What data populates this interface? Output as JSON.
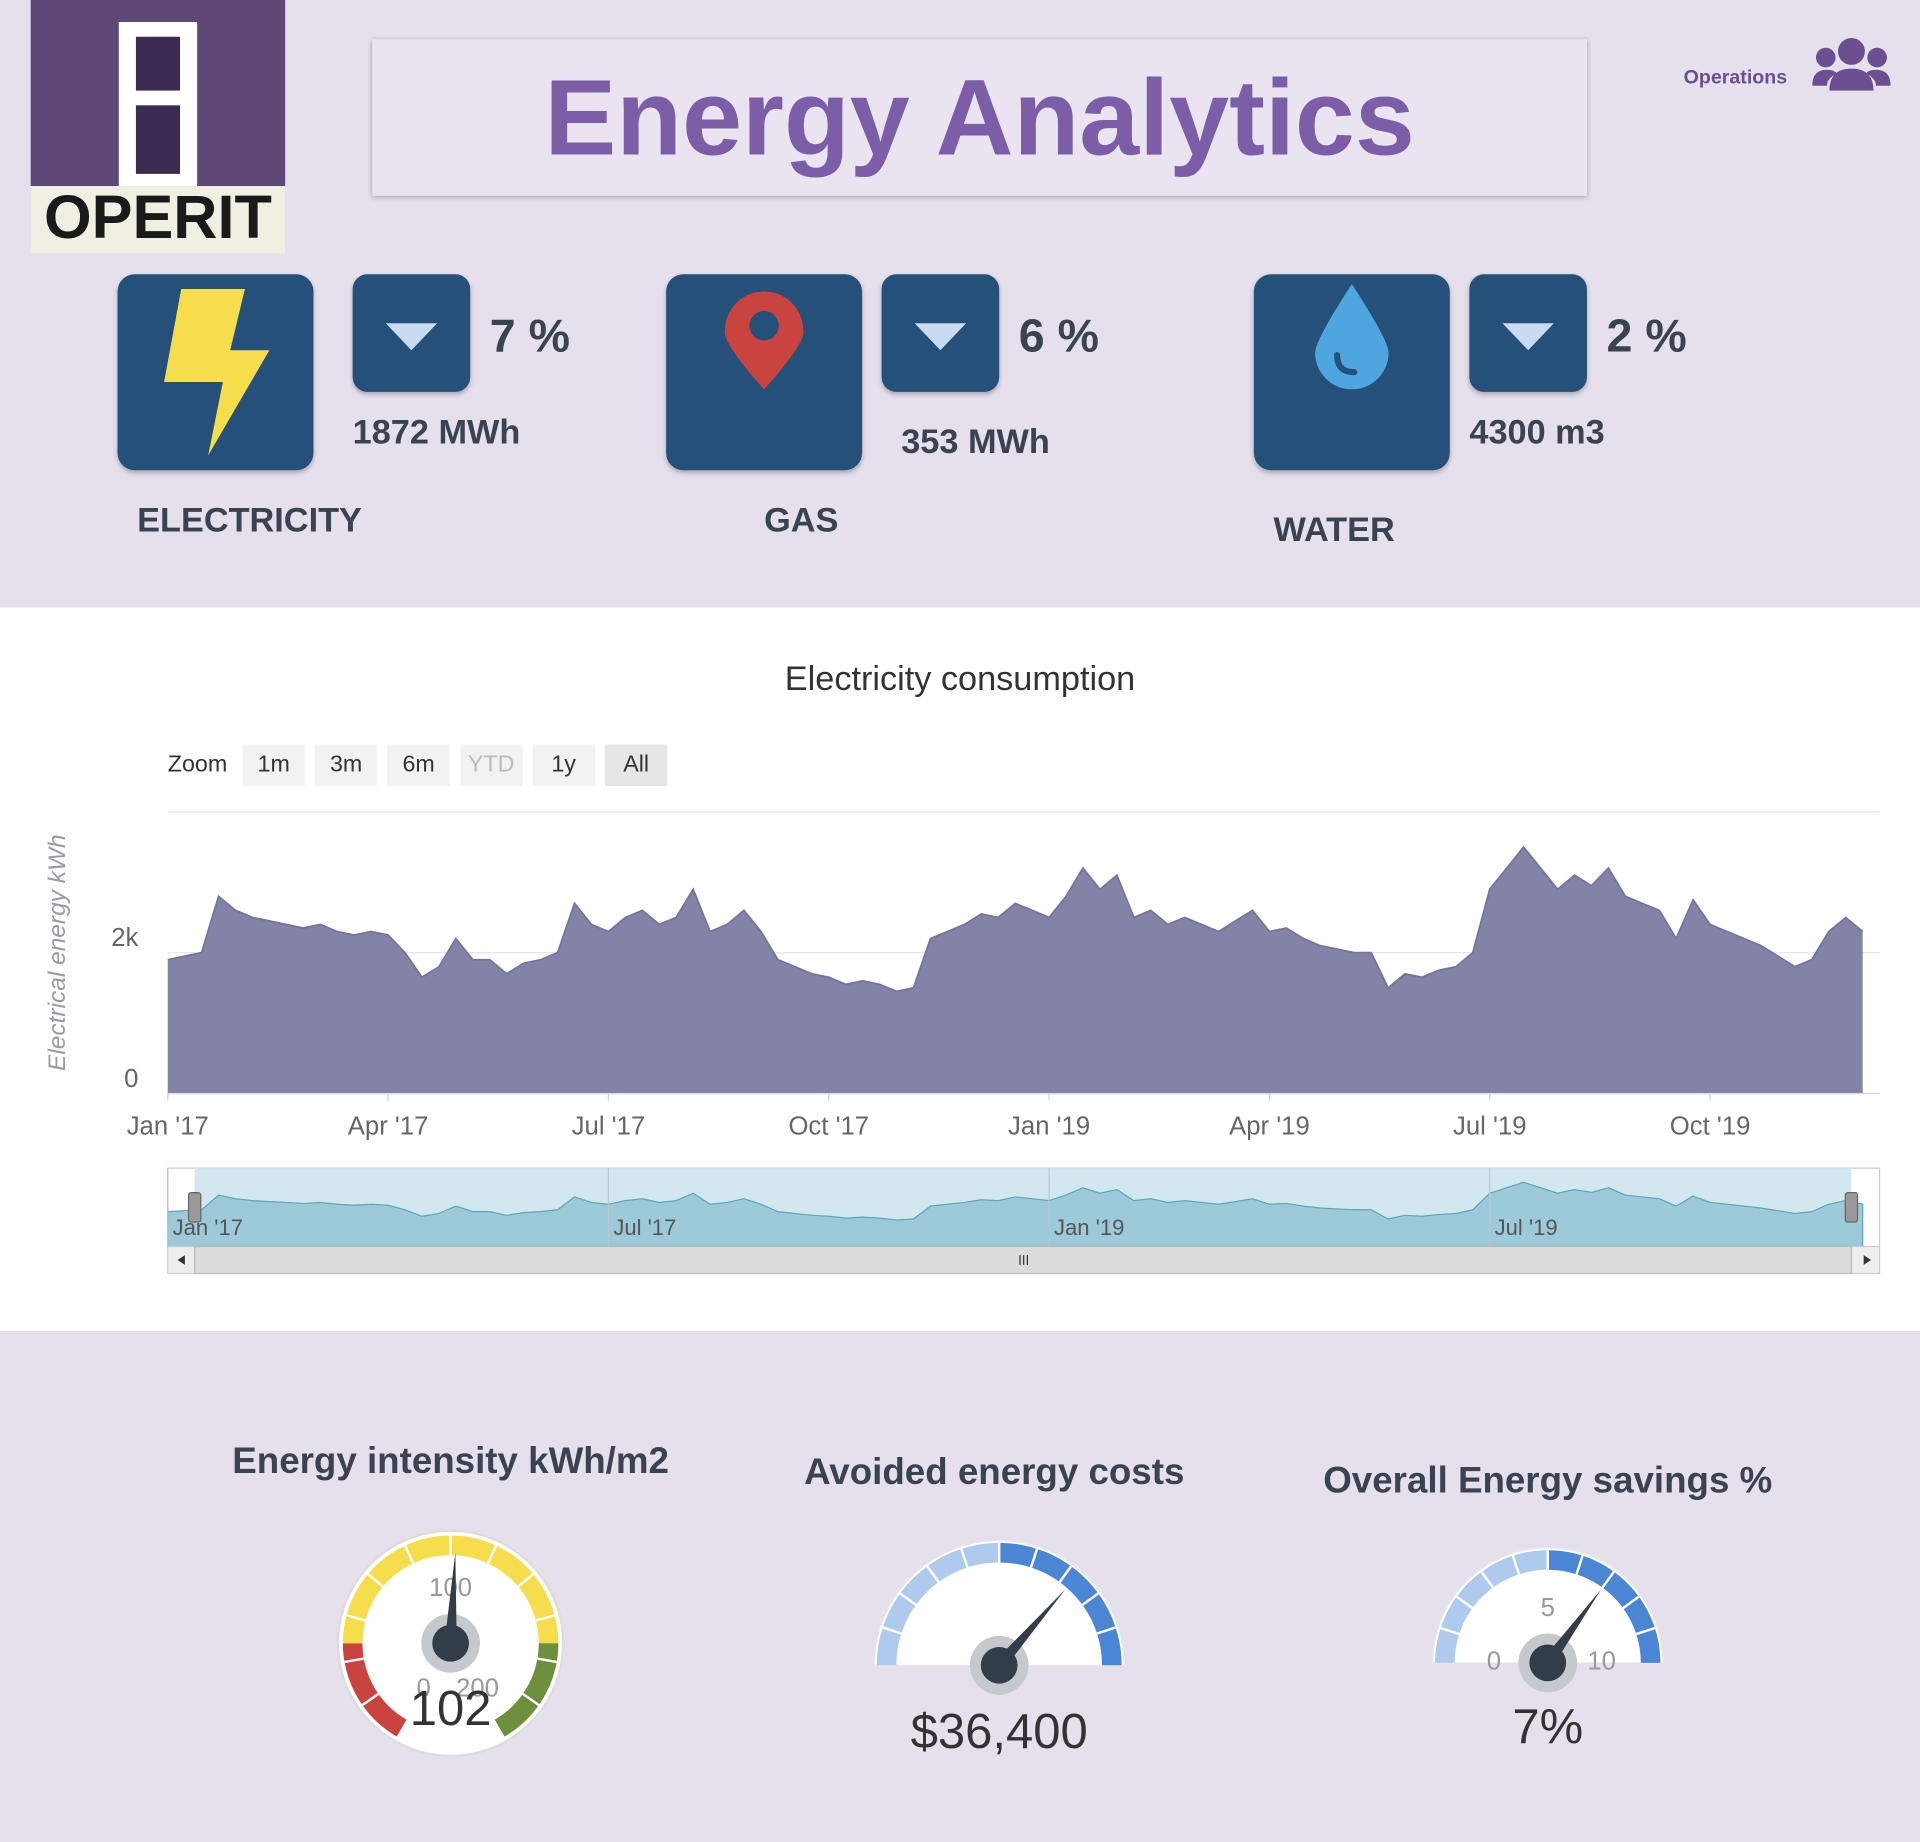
{
  "header": {
    "title": "Energy Analytics",
    "logo": "OPERIT",
    "user": "Operations"
  },
  "kpis": [
    {
      "label": "ELECTRICITY",
      "change": "7 %",
      "amount": "1872 MWh"
    },
    {
      "label": "GAS",
      "change": "6 %",
      "amount": "353 MWh"
    },
    {
      "label": "WATER",
      "change": "2 %",
      "amount": "4300 m3"
    }
  ],
  "chart_data": {
    "type": "area",
    "title": "Electricity consumption",
    "y_label": "Electrical energy kWh",
    "color": "#8383a8",
    "values": [
      1900,
      1950,
      2000,
      2800,
      2600,
      2500,
      2450,
      2400,
      2350,
      2400,
      2300,
      2250,
      2300,
      2250,
      2000,
      1650,
      1800,
      2200,
      1900,
      1900,
      1700,
      1850,
      1900,
      2000,
      2700,
      2400,
      2300,
      2500,
      2600,
      2400,
      2500,
      2900,
      2300,
      2400,
      2600,
      2300,
      1900,
      1800,
      1700,
      1650,
      1550,
      1600,
      1550,
      1450,
      1500,
      2200,
      2300,
      2400,
      2550,
      2500,
      2700,
      2600,
      2500,
      2800,
      3200,
      2900,
      3100,
      2500,
      2600,
      2400,
      2500,
      2400,
      2300,
      2450,
      2600,
      2300,
      2350,
      2200,
      2100,
      2050,
      2000,
      2000,
      1500,
      1700,
      1650,
      1750,
      1800,
      2000,
      2900,
      3200,
      3500,
      3200,
      2900,
      3100,
      2950,
      3200,
      2800,
      2700,
      2600,
      2200,
      2750,
      2400,
      2300,
      2200,
      2100,
      1950,
      1800,
      1900,
      2300,
      2500,
      2300
    ],
    "xlim": [
      0,
      101
    ],
    "xticks": [
      {
        "value": 0,
        "label": "Jan '17"
      },
      {
        "value": 13,
        "label": "Apr '17"
      },
      {
        "value": 26,
        "label": "Jul '17"
      },
      {
        "value": 39,
        "label": "Oct '17"
      },
      {
        "value": 52,
        "label": "Jan '19"
      },
      {
        "value": 65,
        "label": "Apr '19"
      },
      {
        "value": 78,
        "label": "Jul '19"
      },
      {
        "value": 91,
        "label": "Oct '19"
      }
    ],
    "ylim": [
      0,
      4000
    ],
    "yticks": [
      0,
      {
        "value": 2000,
        "label": "2k"
      }
    ],
    "grid": true,
    "zoom": {
      "label": "Zoom",
      "buttons": [
        "1m",
        "3m",
        "6m",
        "YTD",
        "1y",
        "All"
      ]
    },
    "navigator_ticks": [
      {
        "value": 0,
        "label": "Jan '17"
      },
      {
        "value": 26,
        "label": "Jul '17"
      },
      {
        "value": 52,
        "label": "Jan '19"
      },
      {
        "value": 78,
        "label": "Jul '19"
      }
    ]
  },
  "gauges": [
    {
      "title": "Energy intensity kWh/m2",
      "min": 0,
      "max": 200,
      "value": 102,
      "value_label": "102",
      "ticks": [
        0,
        100,
        200
      ],
      "bands": [
        {
          "from": 0,
          "to": 40,
          "color": "#c9443f"
        },
        {
          "from": 40,
          "to": 160,
          "color": "#f5dd4b"
        },
        {
          "from": 160,
          "to": 200,
          "color": "#6e8f3d"
        }
      ]
    },
    {
      "title": "Avoided energy costs",
      "min": 0,
      "max": 50000,
      "value": 36400,
      "value_label": "$36,400",
      "bands": [
        {
          "from": 0,
          "to": 25000,
          "color": "#aecbee"
        },
        {
          "from": 25000,
          "to": 50000,
          "color": "#4a86d4"
        }
      ]
    },
    {
      "title": "Overall Energy savings %",
      "min": 0,
      "max": 10,
      "value": 7,
      "value_label": "7%",
      "ticks": [
        0,
        5,
        10
      ],
      "bands": [
        {
          "from": 0,
          "to": 5,
          "color": "#aecbee"
        },
        {
          "from": 5,
          "to": 10,
          "color": "#4a86d4"
        }
      ]
    }
  ]
}
